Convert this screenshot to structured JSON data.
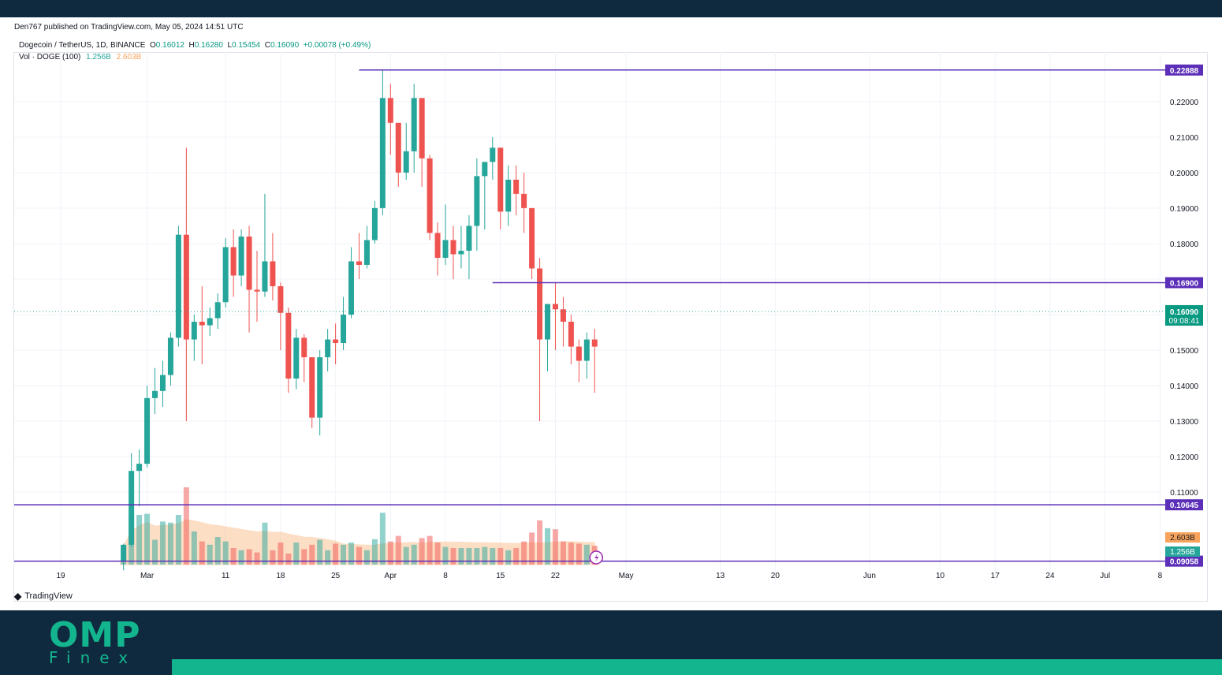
{
  "header": {
    "published_by": "Den767 published on TradingView.com, May 05, 2024 14:51 UTC",
    "symbol": "Dogecoin / TetherUS, 1D, BINANCE",
    "ohlc": {
      "open_label": "O",
      "open": "0.16012",
      "high_label": "H",
      "high": "0.16280",
      "low_label": "L",
      "low": "0.15454",
      "close_label": "C",
      "close": "0.16090",
      "change": "+0.00078 (+0.49%)"
    },
    "volume_label": "Vol · DOGE (100)",
    "volume_value": "1.256B",
    "volume_ma": "2.603B"
  },
  "branding": {
    "tradingview": "TradingView",
    "logo_main": "OMP",
    "logo_sub": "Finex"
  },
  "colors": {
    "up": "#26a69a",
    "down": "#ef5350",
    "level_line": "#5b2fb8",
    "vol_ma_fill": "#f7a35c"
  },
  "chart_data": {
    "type": "candlestick",
    "ylim": [
      0.0905,
      0.2315
    ],
    "y_ticks": [
      0.11,
      0.12,
      0.13,
      0.14,
      0.15,
      0.16,
      0.17,
      0.18,
      0.19,
      0.2,
      0.21,
      0.22
    ],
    "y_tick_labels": [
      "0.11000",
      "0.12000",
      "0.13000",
      "0.14000",
      "0.15000",
      "0.16000",
      "0.17000",
      "0.18000",
      "0.19000",
      "0.20000",
      "0.21000",
      "0.22000"
    ],
    "x_ticks": [
      {
        "label": "19",
        "date": "2024-02-19"
      },
      {
        "label": "Mar",
        "date": "2024-03-01"
      },
      {
        "label": "11",
        "date": "2024-03-11"
      },
      {
        "label": "18",
        "date": "2024-03-18"
      },
      {
        "label": "25",
        "date": "2024-03-25"
      },
      {
        "label": "Apr",
        "date": "2024-04-01"
      },
      {
        "label": "8",
        "date": "2024-04-08"
      },
      {
        "label": "15",
        "date": "2024-04-15"
      },
      {
        "label": "22",
        "date": "2024-04-22"
      },
      {
        "label": "May",
        "date": "2024-05-01"
      },
      {
        "label": "13",
        "date": "2024-05-13"
      },
      {
        "label": "20",
        "date": "2024-05-20"
      },
      {
        "label": "Jun",
        "date": "2024-06-01"
      },
      {
        "label": "10",
        "date": "2024-06-10"
      },
      {
        "label": "17",
        "date": "2024-06-17"
      },
      {
        "label": "24",
        "date": "2024-06-24"
      },
      {
        "label": "Jul",
        "date": "2024-07-01"
      },
      {
        "label": "8",
        "date": "2024-07-08"
      }
    ],
    "horizontal_levels": [
      {
        "price": 0.22888,
        "label": "0.22888",
        "from_date": "2024-03-28"
      },
      {
        "price": 0.169,
        "label": "0.16900",
        "from_date": "2024-04-14"
      },
      {
        "price": 0.10645,
        "label": "0.10645",
        "from_date": "2024-02-13"
      },
      {
        "price": 0.09058,
        "label": "0.09058",
        "from_date": "2024-02-13"
      }
    ],
    "last_price": {
      "price": 0.1609,
      "label": "0.16090",
      "countdown": "09:08:41"
    },
    "volume_labels": {
      "ma": "2.603B",
      "last": "1.256B"
    },
    "candles": [
      {
        "d": "2024-02-27",
        "o": 0.0907,
        "h": 0.0955,
        "l": 0.088,
        "c": 0.0952,
        "v": 0.34
      },
      {
        "d": "2024-02-28",
        "o": 0.0952,
        "h": 0.121,
        "l": 0.0945,
        "c": 0.116,
        "v": 0.88
      },
      {
        "d": "2024-02-29",
        "o": 0.116,
        "h": 0.122,
        "l": 0.106,
        "c": 0.118,
        "v": 0.9
      },
      {
        "d": "2024-03-01",
        "o": 0.118,
        "h": 0.14,
        "l": 0.117,
        "c": 0.1365,
        "v": 0.92
      },
      {
        "d": "2024-03-02",
        "o": 0.1365,
        "h": 0.145,
        "l": 0.132,
        "c": 0.1385,
        "v": 0.45
      },
      {
        "d": "2024-03-03",
        "o": 0.1385,
        "h": 0.147,
        "l": 0.134,
        "c": 0.143,
        "v": 0.78
      },
      {
        "d": "2024-03-04",
        "o": 0.143,
        "h": 0.155,
        "l": 0.14,
        "c": 0.1535,
        "v": 0.76
      },
      {
        "d": "2024-03-05",
        "o": 0.1535,
        "h": 0.185,
        "l": 0.151,
        "c": 0.1825,
        "v": 0.9
      },
      {
        "d": "2024-03-06",
        "o": 0.1825,
        "h": 0.207,
        "l": 0.13,
        "c": 0.153,
        "v": 1.4
      },
      {
        "d": "2024-03-07",
        "o": 0.153,
        "h": 0.16,
        "l": 0.147,
        "c": 0.158,
        "v": 0.6
      },
      {
        "d": "2024-03-08",
        "o": 0.158,
        "h": 0.168,
        "l": 0.146,
        "c": 0.157,
        "v": 0.42
      },
      {
        "d": "2024-03-09",
        "o": 0.157,
        "h": 0.162,
        "l": 0.154,
        "c": 0.159,
        "v": 0.36
      },
      {
        "d": "2024-03-10",
        "o": 0.159,
        "h": 0.166,
        "l": 0.156,
        "c": 0.1635,
        "v": 0.5
      },
      {
        "d": "2024-03-11",
        "o": 0.1635,
        "h": 0.1815,
        "l": 0.162,
        "c": 0.179,
        "v": 0.42
      },
      {
        "d": "2024-03-12",
        "o": 0.179,
        "h": 0.184,
        "l": 0.165,
        "c": 0.171,
        "v": 0.3
      },
      {
        "d": "2024-03-13",
        "o": 0.171,
        "h": 0.184,
        "l": 0.168,
        "c": 0.182,
        "v": 0.26
      },
      {
        "d": "2024-03-14",
        "o": 0.182,
        "h": 0.185,
        "l": 0.155,
        "c": 0.167,
        "v": 0.28
      },
      {
        "d": "2024-03-15",
        "o": 0.167,
        "h": 0.178,
        "l": 0.158,
        "c": 0.1665,
        "v": 0.22
      },
      {
        "d": "2024-03-16",
        "o": 0.1665,
        "h": 0.194,
        "l": 0.165,
        "c": 0.175,
        "v": 0.76
      },
      {
        "d": "2024-03-17",
        "o": 0.175,
        "h": 0.183,
        "l": 0.164,
        "c": 0.168,
        "v": 0.26
      },
      {
        "d": "2024-03-18",
        "o": 0.168,
        "h": 0.169,
        "l": 0.15,
        "c": 0.1605,
        "v": 0.4
      },
      {
        "d": "2024-03-19",
        "o": 0.1605,
        "h": 0.162,
        "l": 0.138,
        "c": 0.142,
        "v": 0.2
      },
      {
        "d": "2024-03-20",
        "o": 0.142,
        "h": 0.156,
        "l": 0.139,
        "c": 0.1535,
        "v": 0.4
      },
      {
        "d": "2024-03-21",
        "o": 0.1535,
        "h": 0.1545,
        "l": 0.141,
        "c": 0.148,
        "v": 0.28
      },
      {
        "d": "2024-03-22",
        "o": 0.148,
        "h": 0.148,
        "l": 0.128,
        "c": 0.131,
        "v": 0.36
      },
      {
        "d": "2024-03-23",
        "o": 0.131,
        "h": 0.15,
        "l": 0.126,
        "c": 0.148,
        "v": 0.45
      },
      {
        "d": "2024-03-24",
        "o": 0.148,
        "h": 0.156,
        "l": 0.144,
        "c": 0.153,
        "v": 0.26
      },
      {
        "d": "2024-03-25",
        "o": 0.153,
        "h": 0.1575,
        "l": 0.146,
        "c": 0.152,
        "v": 0.38
      },
      {
        "d": "2024-03-26",
        "o": 0.152,
        "h": 0.165,
        "l": 0.15,
        "c": 0.16,
        "v": 0.36
      },
      {
        "d": "2024-03-27",
        "o": 0.16,
        "h": 0.179,
        "l": 0.159,
        "c": 0.175,
        "v": 0.4
      },
      {
        "d": "2024-03-28",
        "o": 0.175,
        "h": 0.183,
        "l": 0.17,
        "c": 0.174,
        "v": 0.32
      },
      {
        "d": "2024-03-29",
        "o": 0.174,
        "h": 0.185,
        "l": 0.173,
        "c": 0.181,
        "v": 0.26
      },
      {
        "d": "2024-03-30",
        "o": 0.181,
        "h": 0.192,
        "l": 0.18,
        "c": 0.19,
        "v": 0.46
      },
      {
        "d": "2024-03-31",
        "o": 0.19,
        "h": 0.229,
        "l": 0.188,
        "c": 0.221,
        "v": 0.94
      },
      {
        "d": "2024-04-01",
        "o": 0.221,
        "h": 0.225,
        "l": 0.205,
        "c": 0.214,
        "v": 0.42
      },
      {
        "d": "2024-04-02",
        "o": 0.214,
        "h": 0.214,
        "l": 0.196,
        "c": 0.2,
        "v": 0.52
      },
      {
        "d": "2024-04-03",
        "o": 0.2,
        "h": 0.214,
        "l": 0.198,
        "c": 0.206,
        "v": 0.32
      },
      {
        "d": "2024-04-04",
        "o": 0.206,
        "h": 0.225,
        "l": 0.2,
        "c": 0.221,
        "v": 0.36
      },
      {
        "d": "2024-04-05",
        "o": 0.221,
        "h": 0.22,
        "l": 0.196,
        "c": 0.204,
        "v": 0.48
      },
      {
        "d": "2024-04-06",
        "o": 0.204,
        "h": 0.205,
        "l": 0.181,
        "c": 0.183,
        "v": 0.52
      },
      {
        "d": "2024-04-07",
        "o": 0.183,
        "h": 0.186,
        "l": 0.171,
        "c": 0.176,
        "v": 0.4
      },
      {
        "d": "2024-04-08",
        "o": 0.176,
        "h": 0.191,
        "l": 0.174,
        "c": 0.181,
        "v": 0.32
      },
      {
        "d": "2024-04-09",
        "o": 0.181,
        "h": 0.185,
        "l": 0.17,
        "c": 0.177,
        "v": 0.3
      },
      {
        "d": "2024-04-10",
        "o": 0.177,
        "h": 0.185,
        "l": 0.173,
        "c": 0.178,
        "v": 0.3
      },
      {
        "d": "2024-04-11",
        "o": 0.178,
        "h": 0.188,
        "l": 0.17,
        "c": 0.185,
        "v": 0.3
      },
      {
        "d": "2024-04-12",
        "o": 0.185,
        "h": 0.204,
        "l": 0.178,
        "c": 0.199,
        "v": 0.3
      },
      {
        "d": "2024-04-13",
        "o": 0.199,
        "h": 0.202,
        "l": 0.184,
        "c": 0.203,
        "v": 0.32
      },
      {
        "d": "2024-04-14",
        "o": 0.203,
        "h": 0.21,
        "l": 0.198,
        "c": 0.207,
        "v": 0.3
      },
      {
        "d": "2024-04-15",
        "o": 0.207,
        "h": 0.207,
        "l": 0.184,
        "c": 0.189,
        "v": 0.3
      },
      {
        "d": "2024-04-16",
        "o": 0.189,
        "h": 0.202,
        "l": 0.185,
        "c": 0.198,
        "v": 0.26
      },
      {
        "d": "2024-04-17",
        "o": 0.198,
        "h": 0.202,
        "l": 0.188,
        "c": 0.194,
        "v": 0.3
      },
      {
        "d": "2024-04-18",
        "o": 0.194,
        "h": 0.2,
        "l": 0.183,
        "c": 0.19,
        "v": 0.42
      },
      {
        "d": "2024-04-19",
        "o": 0.19,
        "h": 0.19,
        "l": 0.17,
        "c": 0.173,
        "v": 0.58
      },
      {
        "d": "2024-04-20",
        "o": 0.173,
        "h": 0.176,
        "l": 0.13,
        "c": 0.153,
        "v": 0.8
      },
      {
        "d": "2024-04-21",
        "o": 0.153,
        "h": 0.162,
        "l": 0.144,
        "c": 0.163,
        "v": 0.66
      },
      {
        "d": "2024-04-22",
        "o": 0.163,
        "h": 0.169,
        "l": 0.15,
        "c": 0.1615,
        "v": 0.64
      },
      {
        "d": "2024-04-23",
        "o": 0.1615,
        "h": 0.165,
        "l": 0.151,
        "c": 0.158,
        "v": 0.42
      },
      {
        "d": "2024-04-24",
        "o": 0.158,
        "h": 0.16,
        "l": 0.146,
        "c": 0.151,
        "v": 0.4
      },
      {
        "d": "2024-04-25",
        "o": 0.151,
        "h": 0.153,
        "l": 0.141,
        "c": 0.147,
        "v": 0.38
      },
      {
        "d": "2024-04-26",
        "o": 0.147,
        "h": 0.155,
        "l": 0.142,
        "c": 0.153,
        "v": 0.36
      },
      {
        "d": "2024-04-27",
        "o": 0.153,
        "h": 0.156,
        "l": 0.138,
        "c": 0.151,
        "v": 0.34
      }
    ]
  }
}
